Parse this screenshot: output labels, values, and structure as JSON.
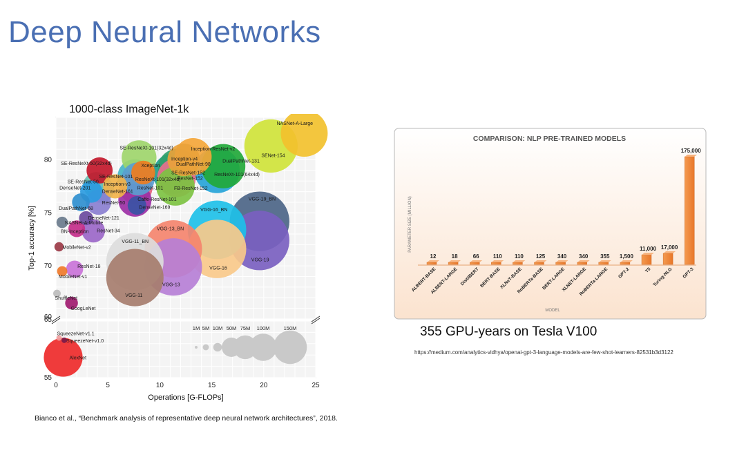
{
  "slide": {
    "title": "Deep Neural Networks",
    "gpu_text": "355 GPU-years on Tesla V100",
    "url": "https://medium.com/analytics-vidhya/openai-gpt-3-language-models-are-few-shot-learners-82531b3d3122",
    "citation": "Bianco et al., “Benchmark analysis of representative deep neural network architectures”, 2018."
  },
  "chart_data": [
    {
      "type": "scatter",
      "title": "1000-class ImageNet-1k",
      "xlabel": "Operations [G-FLOPs]",
      "ylabel": "Top-1 accuracy [%]",
      "xlim": [
        0,
        25
      ],
      "ylim": [
        55,
        84
      ],
      "x_ticks": [
        "0",
        "5",
        "10",
        "15",
        "20",
        "25"
      ],
      "y_ticks": [
        "55",
        "60",
        "65",
        "70",
        "75",
        "80"
      ],
      "axis_break": [
        60,
        65
      ],
      "grid": true,
      "size_legend": {
        "labels": [
          "1M",
          "5M",
          "10M",
          "50M",
          "75M",
          "100M",
          "150M"
        ],
        "params_m": [
          1,
          5,
          10,
          50,
          75,
          100,
          150
        ]
      },
      "points": [
        {
          "name": "NASNet-A-Large",
          "x": 23.9,
          "y": 82.5,
          "params_m": 88.9,
          "color": "#f2c12e"
        },
        {
          "name": "SENet-154",
          "x": 20.7,
          "y": 81.3,
          "params_m": 115,
          "color": "#cfe33a"
        },
        {
          "name": "SE-ResNeXt-101(32x4d)",
          "x": 8.0,
          "y": 80.2,
          "params_m": 49,
          "color": "#9ed56b"
        },
        {
          "name": "Inception-ResNet-v2",
          "x": 13.2,
          "y": 80.3,
          "params_m": 55.8,
          "color": "#f4a63a"
        },
        {
          "name": "Inception-v4",
          "x": 12.3,
          "y": 80.0,
          "params_m": 42.7,
          "color": "#e9a23b"
        },
        {
          "name": "DualPathNet-131",
          "x": 16.1,
          "y": 79.4,
          "params_m": 79.3,
          "color": "#22a83a"
        },
        {
          "name": "DualPathNet-98",
          "x": 11.7,
          "y": 79.2,
          "params_m": 61.6,
          "color": "#2e9e6a"
        },
        {
          "name": "SE-ResNeXt-50(32x4d)",
          "x": 4.2,
          "y": 79.0,
          "params_m": 27.6,
          "color": "#c2182b"
        },
        {
          "name": "Xception",
          "x": 8.4,
          "y": 78.8,
          "params_m": 22.9,
          "color": "#ee7d1e"
        },
        {
          "name": "ResNeXt-101(64x4d)",
          "x": 15.5,
          "y": 79.0,
          "params_m": 83.5,
          "color": "#27a4d8"
        },
        {
          "name": "SE-ResNet-152",
          "x": 11.3,
          "y": 78.7,
          "params_m": 66.8,
          "color": "#1f9c8c"
        },
        {
          "name": "SE-ResNet-101",
          "x": 7.6,
          "y": 78.4,
          "params_m": 49.3,
          "color": "#46b4c5"
        },
        {
          "name": "ResNeXt-101(32x4d)",
          "x": 7.9,
          "y": 78.2,
          "params_m": 44.2,
          "color": "#5a9ed0"
        },
        {
          "name": "ResNet-152",
          "x": 11.6,
          "y": 78.3,
          "params_m": 60.2,
          "color": "#e76f8d"
        },
        {
          "name": "SE-ResNet-50",
          "x": 3.9,
          "y": 77.6,
          "params_m": 28.1,
          "color": "#6ec0b3"
        },
        {
          "name": "Inception-v3",
          "x": 5.7,
          "y": 77.5,
          "params_m": 23.8,
          "color": "#f2b34a"
        },
        {
          "name": "ResNet-101",
          "x": 7.7,
          "y": 77.4,
          "params_m": 44.5,
          "color": "#e4627b"
        },
        {
          "name": "FB-ResNet-152",
          "x": 11.5,
          "y": 77.5,
          "params_m": 60.2,
          "color": "#7dc242"
        },
        {
          "name": "DenseNet-201",
          "x": 3.4,
          "y": 77.0,
          "params_m": 20.0,
          "color": "#2b9be0"
        },
        {
          "name": "DenseNet-161",
          "x": 4.3,
          "y": 77.2,
          "params_m": 28.7,
          "color": "#47b5e8"
        },
        {
          "name": "Caffe-ResNet-101",
          "x": 7.6,
          "y": 76.2,
          "params_m": 44.5,
          "color": "#9c2fa5"
        },
        {
          "name": "ResNet-50",
          "x": 4.1,
          "y": 76.0,
          "params_m": 25.6,
          "color": "#8a7fd0"
        },
        {
          "name": "DenseNet-169",
          "x": 7.8,
          "y": 75.7,
          "params_m": 14.1,
          "color": "#3952a4"
        },
        {
          "name": "DualPathNet-68",
          "x": 2.4,
          "y": 76.0,
          "params_m": 12.6,
          "color": "#2f8fcf"
        },
        {
          "name": "DenseNet-121",
          "x": 2.9,
          "y": 74.5,
          "params_m": 8.0,
          "color": "#6a4a9e"
        },
        {
          "name": "NASNet-A-Mobile",
          "x": 0.6,
          "y": 74.1,
          "params_m": 5.3,
          "color": "#6a7b8c"
        },
        {
          "name": "BN-Inception",
          "x": 2.0,
          "y": 73.5,
          "params_m": 11.3,
          "color": "#c42e8a"
        },
        {
          "name": "ResNet-34",
          "x": 3.6,
          "y": 73.3,
          "params_m": 21.8,
          "color": "#9b67c8"
        },
        {
          "name": "VGG-19_BN",
          "x": 19.6,
          "y": 74.2,
          "params_m": 143.7,
          "color": "#4c6587"
        },
        {
          "name": "VGG-16_BN",
          "x": 15.5,
          "y": 73.4,
          "params_m": 138.4,
          "color": "#1ec0e8"
        },
        {
          "name": "VGG-19",
          "x": 19.6,
          "y": 72.4,
          "params_m": 143.7,
          "color": "#7a60c0"
        },
        {
          "name": "VGG-16",
          "x": 15.5,
          "y": 71.6,
          "params_m": 138.4,
          "color": "#f8c98a"
        },
        {
          "name": "VGG-13_BN",
          "x": 11.3,
          "y": 71.6,
          "params_m": 133,
          "color": "#f4846e"
        },
        {
          "name": "VGG-13",
          "x": 11.3,
          "y": 69.9,
          "params_m": 133,
          "color": "#b67fd6"
        },
        {
          "name": "VGG-11_BN",
          "x": 7.6,
          "y": 70.4,
          "params_m": 132.9,
          "color": "#dcdcdc"
        },
        {
          "name": "VGG-11",
          "x": 7.6,
          "y": 68.9,
          "params_m": 132.9,
          "color": "#a67d6e"
        },
        {
          "name": "MobileNet-v2",
          "x": 0.3,
          "y": 71.8,
          "params_m": 3.5,
          "color": "#9b3a47"
        },
        {
          "name": "ResNet-18",
          "x": 1.8,
          "y": 69.7,
          "params_m": 11.7,
          "color": "#c973d8"
        },
        {
          "name": "MobileNet-v1",
          "x": 0.6,
          "y": 69.5,
          "params_m": 4.2,
          "color": "#ef7a2a"
        },
        {
          "name": "ShuffleNet",
          "x": 0.1,
          "y": 67.4,
          "params_m": 2.3,
          "color": "#bcbcbc"
        },
        {
          "name": "GoogLeNet",
          "x": 1.5,
          "y": 66.5,
          "params_m": 6.6,
          "color": "#a01a6f"
        },
        {
          "name": "SqueezeNet-v1.1",
          "x": 0.3,
          "y": 58.5,
          "params_m": 1.2,
          "color": "#f0a0a0"
        },
        {
          "name": "SqueezeNet-v1.0",
          "x": 0.8,
          "y": 58.3,
          "params_m": 1.2,
          "color": "#7a1a4a"
        },
        {
          "name": "AlexNet",
          "x": 0.7,
          "y": 56.8,
          "params_m": 61.1,
          "color": "#ee2a2a"
        }
      ]
    },
    {
      "type": "bar",
      "title": "COMPARISON: NLP PRE-TRAINED MODELS",
      "xlabel": "MODEL",
      "ylabel": "PARAMETER SIZE (MILLION)",
      "ylim": [
        0,
        175000
      ],
      "bar_color": "#e8772a",
      "background": "#fbe3cf",
      "categories": [
        "ALBERT-BASE",
        "ALBERT-LARGE",
        "DistilBERT",
        "BERT-BASE",
        "XLNeT-BASE",
        "RoBERTa-BASE",
        "BERT-LARGE",
        "XLNET-LARGE",
        "RoBERTa-LARGE",
        "GPT-2",
        "T5",
        "Turing-NLG",
        "GPT-3"
      ],
      "values": [
        12,
        18,
        66,
        110,
        110,
        125,
        340,
        340,
        355,
        1500,
        11000,
        17000,
        175000
      ],
      "value_labels": [
        "12",
        "18",
        "66",
        "110",
        "110",
        "125",
        "340",
        "340",
        "355",
        "1,500",
        "11,000",
        "17,000",
        "175,000"
      ]
    }
  ]
}
